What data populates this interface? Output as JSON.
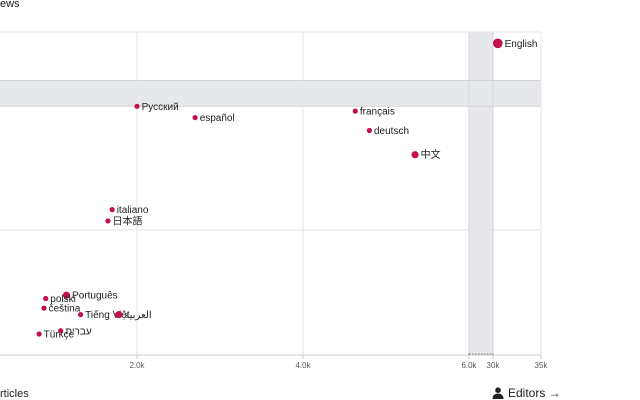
{
  "chart_data": {
    "type": "scatter",
    "title": "",
    "ylabel": "ews",
    "xlabel": "rticles",
    "x_axis_note": "broken axis: linear 0–6.0k, then compressed 6.0k–35k",
    "x_ticks": [
      "2.0k",
      "4.0k",
      "6.0k",
      "30k",
      "35k"
    ],
    "ylim": [
      0,
      100
    ],
    "series": [
      {
        "points": [
          {
            "label": "English",
            "x": 30500,
            "y": 96.5,
            "size": "large"
          },
          {
            "label": "Русский",
            "x": 2000,
            "y": 77,
            "size": "small"
          },
          {
            "label": "español",
            "x": 2700,
            "y": 73.5,
            "size": "small"
          },
          {
            "label": "français",
            "x": 4630,
            "y": 75.5,
            "size": "small"
          },
          {
            "label": "deutsch",
            "x": 4800,
            "y": 69.5,
            "size": "small"
          },
          {
            "label": "中文",
            "x": 5350,
            "y": 62,
            "size": "medium"
          },
          {
            "label": "italiano",
            "x": 1700,
            "y": 45,
            "size": "small"
          },
          {
            "label": "日本語",
            "x": 1650,
            "y": 41.5,
            "size": "small"
          },
          {
            "label": "Português",
            "x": 1150,
            "y": 18.5,
            "size": "medium"
          },
          {
            "label": "polski",
            "x": 900,
            "y": 17.5,
            "size": "small"
          },
          {
            "label": "čeština",
            "x": 880,
            "y": 14.5,
            "size": "small"
          },
          {
            "label": "Tiếng Việt",
            "x": 1320,
            "y": 12.5,
            "size": "small"
          },
          {
            "label": "العربية",
            "x": 1780,
            "y": 12.5,
            "size": "medium"
          },
          {
            "label": "Türkçe",
            "x": 820,
            "y": 6.5,
            "size": "small"
          },
          {
            "label": "עברית",
            "x": 1080,
            "y": 7.5,
            "size": "small"
          }
        ]
      }
    ],
    "highlight_band_x": [
      6000,
      30000
    ],
    "highlight_band_y": [
      77,
      85
    ],
    "grid": true,
    "point_color": "#c3114e"
  },
  "controls": {
    "editors_label": "Editors →",
    "editors_icon": "person-icon"
  }
}
